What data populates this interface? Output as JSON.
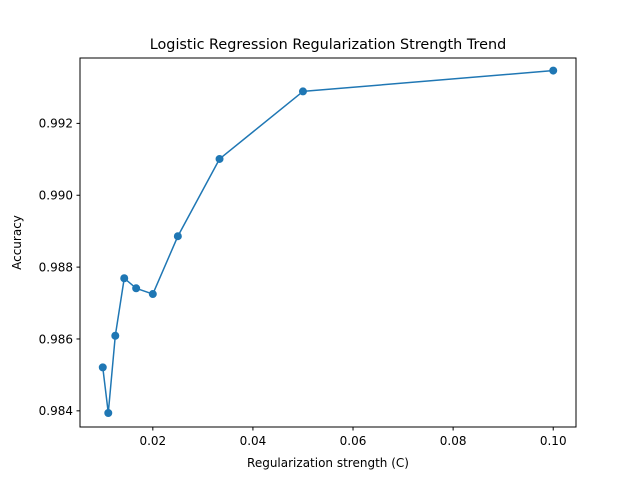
{
  "chart_data": {
    "type": "line",
    "title": "Logistic Regression Regularization Strength Trend",
    "xlabel": "Regularization strength (C)",
    "ylabel": "Accuracy",
    "xlim": [
      0.00545,
      0.10455
    ],
    "ylim": [
      0.98355,
      0.99382
    ],
    "xticks": [
      0.02,
      0.04,
      0.06,
      0.08,
      0.1
    ],
    "xtick_labels": [
      "0.02",
      "0.04",
      "0.06",
      "0.08",
      "0.10"
    ],
    "yticks": [
      0.984,
      0.986,
      0.988,
      0.99,
      0.992
    ],
    "ytick_labels": [
      "0.984",
      "0.986",
      "0.988",
      "0.990",
      "0.992"
    ],
    "grid": false,
    "series": [
      {
        "color": "#1f77b4",
        "marker": "circle",
        "x": [
          0.01,
          0.0111,
          0.0125,
          0.01429,
          0.01667,
          0.02,
          0.025,
          0.03333,
          0.05,
          0.1
        ],
        "y": [
          0.98521,
          0.98394,
          0.98609,
          0.98769,
          0.98741,
          0.98725,
          0.98886,
          0.99101,
          0.99289,
          0.99347
        ]
      }
    ]
  }
}
